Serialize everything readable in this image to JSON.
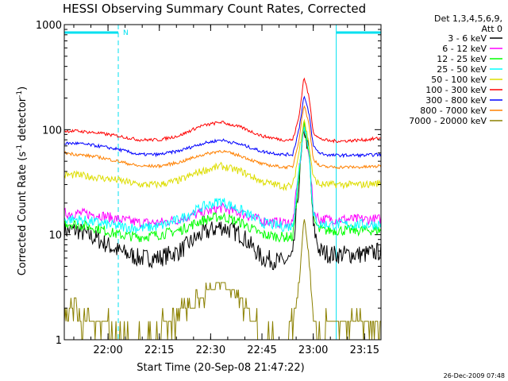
{
  "chart_data": {
    "type": "line",
    "title": "HESSI Observing Summary Count Rates, Corrected",
    "xlabel": "Start Time (20-Sep-08 21:47:22)",
    "ylabel_main": "Corrected Count Rate (s",
    "ylabel_exp1": "-1",
    "ylabel_mid": " detector",
    "ylabel_exp2": "-1",
    "ylabel_close": ")",
    "ylog": true,
    "ylim": [
      1,
      1000
    ],
    "xlim_minutes": [
      21.787,
      23.33
    ],
    "x_unit": "hours (UT)",
    "xticks": [
      {
        "h": 22.0,
        "label": "22:00"
      },
      {
        "h": 22.25,
        "label": "22:15"
      },
      {
        "h": 22.5,
        "label": "22:30"
      },
      {
        "h": 22.75,
        "label": "22:45"
      },
      {
        "h": 23.0,
        "label": "23:00"
      },
      {
        "h": 23.25,
        "label": "23:15"
      }
    ],
    "xminor_step": 0.0833333,
    "yticks": [
      {
        "v": 1,
        "label": "1"
      },
      {
        "v": 10,
        "label": "10"
      },
      {
        "v": 100,
        "label": "100"
      },
      {
        "v": 1000,
        "label": "1000"
      }
    ],
    "legend_header": [
      "Det 1,3,4,5,6,9,",
      "Att 0"
    ],
    "legend_position": "top-right, outside plot",
    "night_intervals": [
      {
        "start": 21.787,
        "end": 22.05,
        "label": "N"
      },
      {
        "start": 23.112,
        "end": 23.33,
        "label": ""
      }
    ],
    "series": [
      {
        "name": "3 - 6 keV",
        "color": "#000000",
        "x": [
          21.79,
          21.85,
          21.95,
          22.05,
          22.15,
          22.25,
          22.35,
          22.45,
          22.55,
          22.65,
          22.75,
          22.85,
          22.9,
          22.93,
          22.955,
          22.98,
          23.0,
          23.03,
          23.08,
          23.15,
          23.25,
          23.33
        ],
        "y": [
          11,
          11,
          9,
          7,
          6,
          6,
          7,
          10,
          12,
          10,
          6,
          5.5,
          6,
          30,
          105,
          60,
          12,
          7,
          6.5,
          6.5,
          6.5,
          7
        ]
      },
      {
        "name": "6 - 12 keV",
        "color": "#ff00ff",
        "x": [
          21.79,
          21.85,
          21.95,
          22.05,
          22.15,
          22.25,
          22.35,
          22.45,
          22.55,
          22.65,
          22.75,
          22.85,
          22.9,
          22.93,
          22.955,
          22.98,
          23.0,
          23.03,
          23.08,
          23.15,
          23.25,
          23.33
        ],
        "y": [
          16,
          16,
          15.5,
          14,
          13,
          13,
          14,
          16,
          18,
          16,
          13.5,
          13,
          13,
          40,
          110,
          60,
          17,
          14,
          14,
          14,
          14,
          14
        ]
      },
      {
        "name": "12 - 25 keV",
        "color": "#00ff00",
        "x": [
          21.79,
          21.85,
          21.95,
          22.05,
          22.15,
          22.25,
          22.35,
          22.45,
          22.55,
          22.65,
          22.75,
          22.85,
          22.9,
          22.93,
          22.955,
          22.98,
          23.0,
          23.03,
          23.08,
          23.15,
          23.25,
          23.33
        ],
        "y": [
          13,
          12.5,
          11.5,
          10,
          9.5,
          10,
          11,
          13.5,
          15,
          13,
          10,
          9.5,
          9.5,
          35,
          115,
          60,
          14,
          11,
          11,
          11,
          11,
          11
        ]
      },
      {
        "name": "25 - 50 keV",
        "color": "#00ffff",
        "x": [
          21.79,
          21.85,
          21.95,
          22.05,
          22.15,
          22.25,
          22.35,
          22.45,
          22.55,
          22.65,
          22.75,
          22.85,
          22.9,
          22.93,
          22.955,
          22.98,
          23.0,
          23.03,
          23.08,
          23.15,
          23.25,
          23.33
        ],
        "y": [
          14,
          14,
          13,
          12,
          11.5,
          12,
          14,
          18,
          21,
          17,
          13,
          12,
          12,
          40,
          120,
          62,
          15,
          12.5,
          12.5,
          12.5,
          12.5,
          12.5
        ]
      },
      {
        "name": "50 - 100 keV",
        "color": "#dddd00",
        "x": [
          21.79,
          21.85,
          21.95,
          22.05,
          22.15,
          22.25,
          22.35,
          22.45,
          22.55,
          22.65,
          22.75,
          22.85,
          22.9,
          22.93,
          22.955,
          22.98,
          23.0,
          23.03,
          23.08,
          23.15,
          23.25,
          23.33
        ],
        "y": [
          37,
          37,
          35,
          33,
          30,
          30,
          33,
          40,
          45,
          40,
          32,
          29,
          29,
          60,
          130,
          70,
          35,
          30,
          30,
          30,
          30,
          31
        ]
      },
      {
        "name": "100 - 300 keV",
        "color": "#ff0000",
        "x": [
          21.79,
          21.85,
          21.95,
          22.05,
          22.15,
          22.25,
          22.35,
          22.45,
          22.55,
          22.65,
          22.75,
          22.85,
          22.9,
          22.93,
          22.955,
          22.98,
          23.0,
          23.03,
          23.08,
          23.15,
          23.25,
          23.33
        ],
        "y": [
          97,
          97,
          93,
          87,
          80,
          80,
          88,
          108,
          118,
          105,
          87,
          80,
          80,
          130,
          320,
          200,
          95,
          82,
          78,
          78,
          80,
          83
        ]
      },
      {
        "name": "300 - 800 keV",
        "color": "#0000ff",
        "x": [
          21.79,
          21.85,
          21.95,
          22.05,
          22.15,
          22.25,
          22.35,
          22.45,
          22.55,
          22.65,
          22.75,
          22.85,
          22.9,
          22.93,
          22.955,
          22.98,
          23.0,
          23.03,
          23.08,
          23.15,
          23.25,
          23.33
        ],
        "y": [
          74,
          74,
          70,
          65,
          58,
          58,
          63,
          73,
          80,
          72,
          62,
          58,
          58,
          100,
          210,
          140,
          70,
          60,
          57,
          57,
          57,
          58
        ]
      },
      {
        "name": "800 - 7000 keV",
        "color": "#ff8000",
        "x": [
          21.79,
          21.85,
          21.95,
          22.05,
          22.15,
          22.25,
          22.35,
          22.45,
          22.55,
          22.65,
          22.75,
          22.85,
          22.9,
          22.93,
          22.955,
          22.98,
          23.0,
          23.03,
          23.08,
          23.15,
          23.25,
          23.33
        ],
        "y": [
          60,
          58,
          55,
          50,
          45,
          45,
          49,
          57,
          63,
          56,
          47,
          44,
          44,
          80,
          175,
          110,
          53,
          45,
          44,
          44,
          44,
          45
        ]
      },
      {
        "name": "7000 - 20000 keV",
        "color": "#8b8000",
        "x": [
          21.79,
          21.83,
          21.9,
          21.97,
          22.05,
          22.12,
          22.2,
          22.3,
          22.4,
          22.45,
          22.5,
          22.55,
          22.6,
          22.68,
          22.75,
          22.85,
          22.9,
          22.93,
          22.955,
          22.98,
          23.0,
          23.03,
          23.08,
          23.15,
          23.25,
          23.33
        ],
        "y": [
          1.5,
          2,
          1.5,
          1.5,
          1,
          1,
          1,
          1.5,
          2,
          2.5,
          3,
          3.5,
          3,
          2,
          1,
          1,
          1.5,
          3,
          15,
          6,
          1.5,
          1,
          1.5,
          1.5,
          1.5,
          1.5
        ]
      }
    ]
  },
  "footer": {
    "timestamp": "26-Dec-2009 07:48"
  }
}
